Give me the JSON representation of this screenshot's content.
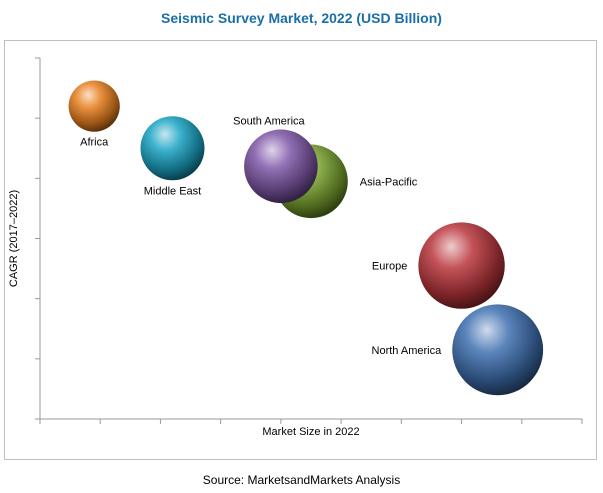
{
  "chart_data": {
    "type": "scatter",
    "title": "Seismic Survey Market, 2022 (USD Billion)",
    "xlabel": "Market Size in 2022",
    "ylabel": "CAGR (2017–2022)",
    "source": "Source: MarketsandMarkets Analysis",
    "xlim": [
      0,
      9
    ],
    "ylim": [
      0,
      6
    ],
    "grid": false,
    "legend": "none",
    "series": [
      {
        "name": "Africa",
        "x": 0.9,
        "y": 5.2,
        "size": 0.8,
        "color": "#e87f1e"
      },
      {
        "name": "Middle East",
        "x": 2.2,
        "y": 4.5,
        "size": 1.0,
        "color": "#1aa3c4"
      },
      {
        "name": "Asia-Pacific",
        "x": 4.5,
        "y": 3.95,
        "size": 1.15,
        "color": "#76a02c"
      },
      {
        "name": "South America",
        "x": 4.0,
        "y": 4.2,
        "size": 1.15,
        "color": "#7f57a8"
      },
      {
        "name": "Europe",
        "x": 7.0,
        "y": 2.55,
        "size": 1.35,
        "color": "#b8353a"
      },
      {
        "name": "North America",
        "x": 7.6,
        "y": 1.15,
        "size": 1.42,
        "color": "#3e6fb0"
      }
    ]
  }
}
